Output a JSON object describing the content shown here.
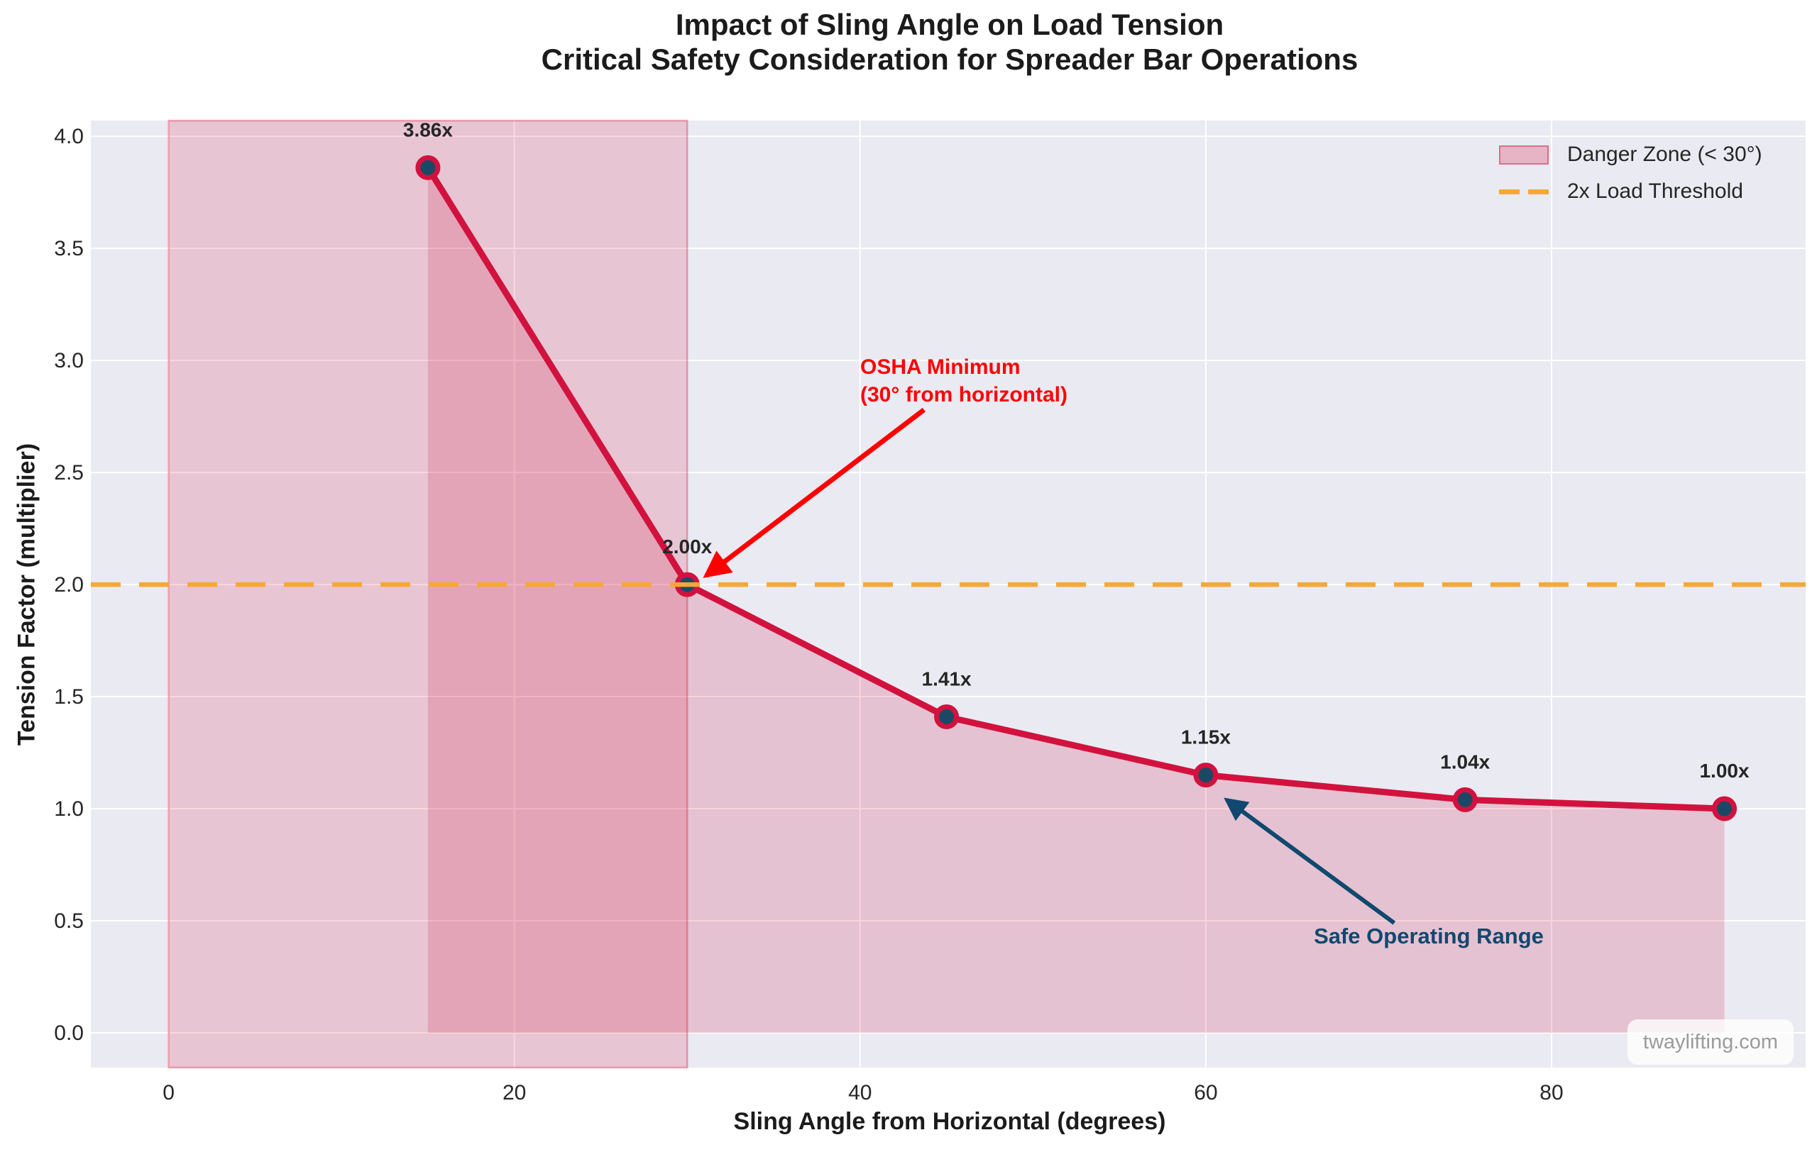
{
  "title": {
    "line1": "Impact of Sling Angle on Load Tension",
    "line2": "Critical Safety Consideration for Spreader Bar Operations"
  },
  "watermark": "twaylifting.com",
  "chart_data": {
    "type": "line",
    "x": [
      15,
      30,
      45,
      60,
      75,
      90
    ],
    "y": [
      3.86,
      2.0,
      1.41,
      1.15,
      1.04,
      1.0
    ],
    "point_labels": [
      "3.86x",
      "2.00x",
      "1.41x",
      "1.15x",
      "1.04x",
      "1.00x"
    ],
    "xlabel": "Sling Angle from Horizontal (degrees)",
    "ylabel": "Tension Factor (multiplier)",
    "xlim": [
      -4.5,
      94.7
    ],
    "ylim": [
      -0.155,
      4.07
    ],
    "x_ticks": {
      "values": [
        0,
        20,
        40,
        60,
        80
      ],
      "labels": [
        "0",
        "20",
        "40",
        "60",
        "80"
      ]
    },
    "y_ticks": {
      "values": [
        0,
        0.5,
        1,
        1.5,
        2,
        2.5,
        3,
        3.5,
        4
      ],
      "labels": [
        "0.0",
        "0.5",
        "1.0",
        "1.5",
        "2.0",
        "2.5",
        "3.0",
        "3.5",
        "4.0"
      ]
    },
    "grid": true,
    "legend_position": "upper right",
    "danger_zone": {
      "x_start": 0,
      "x_end": 30
    },
    "threshold": {
      "y": 2.0
    },
    "area_fill": {
      "from_x": 15,
      "to_x": 90,
      "baseline": 0
    },
    "legend": [
      {
        "label": "Danger Zone (< 30°)",
        "swatch": "patch"
      },
      {
        "label": "2x Load Threshold",
        "swatch": "dashed-line"
      }
    ],
    "annotations": [
      {
        "id": "osha-minimum",
        "text_lines": [
          "OSHA Minimum",
          "(30° from horizontal)"
        ],
        "color": "#ff0000",
        "arrow": {
          "from": [
            43.7,
            2.78
          ],
          "to": [
            31.1,
            2.04
          ]
        }
      },
      {
        "id": "safe-operating-range",
        "text_lines": [
          "Safe Operating Range"
        ],
        "color": "#11486f",
        "arrow": {
          "from": [
            70.9,
            0.49
          ],
          "to": [
            61.2,
            1.04
          ]
        }
      }
    ],
    "colors": {
      "axes_bg": "#eaeaf2",
      "grid": "#ffffff",
      "line": "#d2123e",
      "marker_fill": "#1b4965",
      "marker_edge": "#d2123e",
      "area_fill": "rgba(210,16,60,0.18)",
      "danger_fill": "rgba(220,20,60,0.17)",
      "danger_edge": "rgba(220,20,60,0.35)",
      "threshold": "#f7a833",
      "value_label": "#262626",
      "tick_label": "#262626"
    }
  }
}
